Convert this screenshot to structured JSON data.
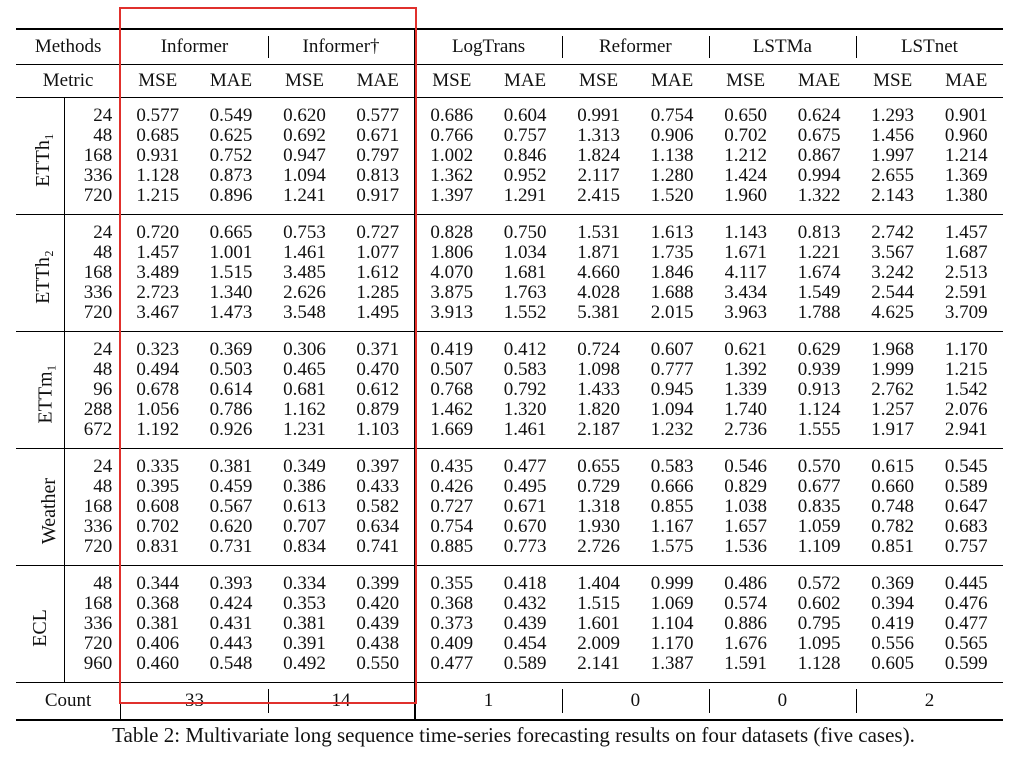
{
  "methods_label": "Methods",
  "metric_label": "Metric",
  "count_label": "Count",
  "methods": [
    "Informer",
    "Informer†",
    "LogTrans",
    "Reformer",
    "LSTMa",
    "LSTnet"
  ],
  "metrics": [
    "MSE",
    "MAE"
  ],
  "counts": [
    "33",
    "14",
    "1",
    "0",
    "0",
    "2"
  ],
  "highlight_color": "#e0302c",
  "caption": "Table 2: Multivariate long sequence time-series forecasting results on four datasets (five cases).",
  "groups": [
    {
      "dataset": "ETTh₁",
      "rows": [
        {
          "h": "24",
          "v": [
            "0.577",
            "0.549",
            "0.620",
            "0.577",
            "0.686",
            "0.604",
            "0.991",
            "0.754",
            "0.650",
            "0.624",
            "1.293",
            "0.901"
          ],
          "bold": [
            0,
            1
          ]
        },
        {
          "h": "48",
          "v": [
            "0.685",
            "0.625",
            "0.692",
            "0.671",
            "0.766",
            "0.757",
            "1.313",
            "0.906",
            "0.702",
            "0.675",
            "1.456",
            "0.960"
          ],
          "bold": [
            0,
            1
          ]
        },
        {
          "h": "168",
          "v": [
            "0.931",
            "0.752",
            "0.947",
            "0.797",
            "1.002",
            "0.846",
            "1.824",
            "1.138",
            "1.212",
            "0.867",
            "1.997",
            "1.214"
          ],
          "bold": [
            0,
            1
          ]
        },
        {
          "h": "336",
          "v": [
            "1.128",
            "0.873",
            "1.094",
            "0.813",
            "1.362",
            "0.952",
            "2.117",
            "1.280",
            "1.424",
            "0.994",
            "2.655",
            "1.369"
          ],
          "bold": [
            2,
            3
          ]
        },
        {
          "h": "720",
          "v": [
            "1.215",
            "0.896",
            "1.241",
            "0.917",
            "1.397",
            "1.291",
            "2.415",
            "1.520",
            "1.960",
            "1.322",
            "2.143",
            "1.380"
          ],
          "bold": [
            0,
            1
          ]
        }
      ]
    },
    {
      "dataset": "ETTh₂",
      "rows": [
        {
          "h": "24",
          "v": [
            "0.720",
            "0.665",
            "0.753",
            "0.727",
            "0.828",
            "0.750",
            "1.531",
            "1.613",
            "1.143",
            "0.813",
            "2.742",
            "1.457"
          ],
          "bold": [
            0,
            1
          ]
        },
        {
          "h": "48",
          "v": [
            "1.457",
            "1.001",
            "1.461",
            "1.077",
            "1.806",
            "1.034",
            "1.871",
            "1.735",
            "1.671",
            "1.221",
            "3.567",
            "1.687"
          ],
          "bold": [
            0,
            1
          ]
        },
        {
          "h": "168",
          "v": [
            "3.489",
            "1.515",
            "3.485",
            "1.612",
            "4.070",
            "1.681",
            "4.660",
            "1.846",
            "4.117",
            "1.674",
            "3.242",
            "2.513"
          ],
          "bold": [
            1,
            10
          ]
        },
        {
          "h": "336",
          "v": [
            "2.723",
            "1.340",
            "2.626",
            "1.285",
            "3.875",
            "1.763",
            "4.028",
            "1.688",
            "3.434",
            "1.549",
            "2.544",
            "2.591"
          ],
          "bold": [
            3,
            10
          ]
        },
        {
          "h": "720",
          "v": [
            "3.467",
            "1.473",
            "3.548",
            "1.495",
            "3.913",
            "1.552",
            "5.381",
            "2.015",
            "3.963",
            "1.788",
            "4.625",
            "3.709"
          ],
          "bold": [
            0,
            1
          ]
        }
      ]
    },
    {
      "dataset": "ETTm₁",
      "rows": [
        {
          "h": "24",
          "v": [
            "0.323",
            "0.369",
            "0.306",
            "0.371",
            "0.419",
            "0.412",
            "0.724",
            "0.607",
            "0.621",
            "0.629",
            "1.968",
            "1.170"
          ],
          "bold": [
            1,
            2
          ]
        },
        {
          "h": "48",
          "v": [
            "0.494",
            "0.503",
            "0.465",
            "0.470",
            "0.507",
            "0.583",
            "1.098",
            "0.777",
            "1.392",
            "0.939",
            "1.999",
            "1.215"
          ],
          "bold": [
            2,
            3
          ]
        },
        {
          "h": "96",
          "v": [
            "0.678",
            "0.614",
            "0.681",
            "0.612",
            "0.768",
            "0.792",
            "1.433",
            "0.945",
            "1.339",
            "0.913",
            "2.762",
            "1.542"
          ],
          "bold": [
            0,
            3
          ]
        },
        {
          "h": "288",
          "v": [
            "1.056",
            "0.786",
            "1.162",
            "0.879",
            "1.462",
            "1.320",
            "1.820",
            "1.094",
            "1.740",
            "1.124",
            "1.257",
            "2.076"
          ],
          "bold": [
            0,
            1
          ]
        },
        {
          "h": "672",
          "v": [
            "1.192",
            "0.926",
            "1.231",
            "1.103",
            "1.669",
            "1.461",
            "2.187",
            "1.232",
            "2.736",
            "1.555",
            "1.917",
            "2.941"
          ],
          "bold": [
            0,
            1
          ]
        }
      ]
    },
    {
      "dataset": "Weather",
      "rows": [
        {
          "h": "24",
          "v": [
            "0.335",
            "0.381",
            "0.349",
            "0.397",
            "0.435",
            "0.477",
            "0.655",
            "0.583",
            "0.546",
            "0.570",
            "0.615",
            "0.545"
          ],
          "bold": [
            0,
            1
          ]
        },
        {
          "h": "48",
          "v": [
            "0.395",
            "0.459",
            "0.386",
            "0.433",
            "0.426",
            "0.495",
            "0.729",
            "0.666",
            "0.829",
            "0.677",
            "0.660",
            "0.589"
          ],
          "bold": [
            2,
            3
          ]
        },
        {
          "h": "168",
          "v": [
            "0.608",
            "0.567",
            "0.613",
            "0.582",
            "0.727",
            "0.671",
            "1.318",
            "0.855",
            "1.038",
            "0.835",
            "0.748",
            "0.647"
          ],
          "bold": [
            0,
            1
          ]
        },
        {
          "h": "336",
          "v": [
            "0.702",
            "0.620",
            "0.707",
            "0.634",
            "0.754",
            "0.670",
            "1.930",
            "1.167",
            "1.657",
            "1.059",
            "0.782",
            "0.683"
          ],
          "bold": [
            0,
            1
          ]
        },
        {
          "h": "720",
          "v": [
            "0.831",
            "0.731",
            "0.834",
            "0.741",
            "0.885",
            "0.773",
            "2.726",
            "1.575",
            "1.536",
            "1.109",
            "0.851",
            "0.757"
          ],
          "bold": [
            0,
            1
          ]
        }
      ]
    },
    {
      "dataset": "ECL",
      "rows": [
        {
          "h": "48",
          "v": [
            "0.344",
            "0.393",
            "0.334",
            "0.399",
            "0.355",
            "0.418",
            "1.404",
            "0.999",
            "0.486",
            "0.572",
            "0.369",
            "0.445"
          ],
          "bold": [
            1,
            2
          ]
        },
        {
          "h": "168",
          "v": [
            "0.368",
            "0.424",
            "0.353",
            "0.420",
            "0.368",
            "0.432",
            "1.515",
            "1.069",
            "0.574",
            "0.602",
            "0.394",
            "0.476"
          ],
          "bold": [
            2,
            3
          ]
        },
        {
          "h": "336",
          "v": [
            "0.381",
            "0.431",
            "0.381",
            "0.439",
            "0.373",
            "0.439",
            "1.601",
            "1.104",
            "0.886",
            "0.795",
            "0.419",
            "0.477"
          ],
          "bold": [
            1,
            4
          ]
        },
        {
          "h": "720",
          "v": [
            "0.406",
            "0.443",
            "0.391",
            "0.438",
            "0.409",
            "0.454",
            "2.009",
            "1.170",
            "1.676",
            "1.095",
            "0.556",
            "0.565"
          ],
          "bold": [
            2,
            3
          ]
        },
        {
          "h": "960",
          "v": [
            "0.460",
            "0.548",
            "0.492",
            "0.550",
            "0.477",
            "0.589",
            "2.141",
            "1.387",
            "1.591",
            "1.128",
            "0.605",
            "0.599"
          ],
          "bold": [
            0,
            1
          ]
        }
      ]
    }
  ]
}
